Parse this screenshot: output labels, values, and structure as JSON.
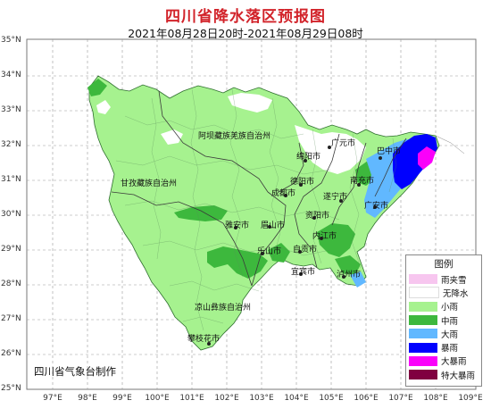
{
  "title": "四川省降水落区预报图",
  "subtitle": "2021年08月28日20时-2021年08月29日08时",
  "credit": "四川省气象台制作",
  "lat_labels": [
    "35°N",
    "34°N",
    "33°N",
    "32°N",
    "31°N",
    "30°N",
    "29°N",
    "28°N",
    "27°N",
    "26°N",
    "25°N"
  ],
  "lon_labels": [
    "97°E",
    "98°E",
    "99°E",
    "100°E",
    "101°E",
    "102°E",
    "103°E",
    "104°E",
    "105°E",
    "106°E",
    "107°E",
    "108°E",
    "109°E"
  ],
  "legend": {
    "title": "图例",
    "items": [
      {
        "label": "雨夹雪",
        "color": "#f7c6ef"
      },
      {
        "label": "无降水",
        "color": "#ffffff"
      },
      {
        "label": "小雨",
        "color": "#a6f28f"
      },
      {
        "label": "中雨",
        "color": "#3db83d"
      },
      {
        "label": "大雨",
        "color": "#61b8ff"
      },
      {
        "label": "暴雨",
        "color": "#0000fe"
      },
      {
        "label": "大暴雨",
        "color": "#fa00fa"
      },
      {
        "label": "特大暴雨",
        "color": "#800040"
      }
    ]
  },
  "regions": {
    "aba": "阿坝藏族羌族自治州",
    "ganzi": "甘孜藏族自治州",
    "liangshan": "凉山彝族自治州"
  },
  "cities": {
    "guangyuan": "广元市",
    "bazhong": "巴中市",
    "mianyang": "绵阳市",
    "nanchong": "南充市",
    "deyang": "德阳市",
    "suining": "遂宁市",
    "chengdu": "成都市",
    "guangan": "广安市",
    "ziyang": "资阳市",
    "neijiang": "内江市",
    "yaan": "雅安市",
    "meishan": "眉山市",
    "zigong": "自贡市",
    "leshan": "乐山市",
    "yibin": "宜宾市",
    "luzhou": "泸州市",
    "panzhihua": "攀枝花市"
  }
}
